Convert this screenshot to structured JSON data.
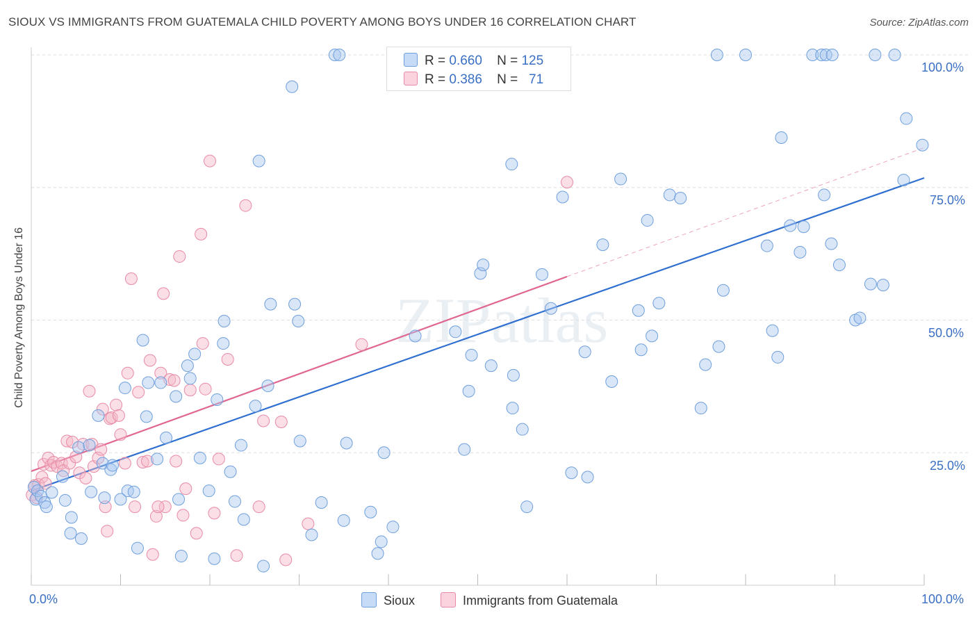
{
  "title": "SIOUX VS IMMIGRANTS FROM GUATEMALA CHILD POVERTY AMONG BOYS UNDER 16 CORRELATION CHART",
  "source": "Source: ZipAtlas.com",
  "watermark": "ZIPatlas",
  "legend_top": {
    "rows": [
      {
        "r_label": "R =",
        "r_value": "0.660",
        "n_label": "N =",
        "n_value": "125",
        "color": "#a9c8f0"
      },
      {
        "r_label": "R =",
        "r_value": "0.386",
        "n_label": "N =",
        "n_value": "71",
        "color": "#f5b8c8"
      }
    ]
  },
  "chart_data": {
    "type": "scatter",
    "title": "SIOUX VS IMMIGRANTS FROM GUATEMALA CHILD POVERTY AMONG BOYS UNDER 16 CORRELATION CHART",
    "xlabel": "",
    "ylabel": "Child Poverty Among Boys Under 16",
    "xlim": [
      0,
      100
    ],
    "ylim": [
      0,
      100
    ],
    "x_tick_labels": [
      "0.0%",
      "100.0%"
    ],
    "y_tick_labels": [
      "25.0%",
      "50.0%",
      "75.0%",
      "100.0%"
    ],
    "y_ticks": [
      25,
      50,
      75,
      100
    ],
    "grid": "horizontal dashed",
    "series": [
      {
        "name": "Sioux",
        "color": "#a9c8f0",
        "stroke": "#6f9fdc",
        "line_color": "#2f6fd0",
        "trend": {
          "x": [
            0,
            100
          ],
          "y": [
            17.8,
            76.8
          ]
        },
        "points": [
          [
            0.3,
            18.5
          ],
          [
            0.5,
            16.2
          ],
          [
            0.7,
            17.8
          ],
          [
            1.1,
            16.8
          ],
          [
            1.5,
            15.6
          ],
          [
            1.7,
            14.8
          ],
          [
            2.3,
            17.5
          ],
          [
            3.5,
            20.5
          ],
          [
            3.8,
            16.0
          ],
          [
            4.5,
            12.8
          ],
          [
            4.4,
            9.8
          ],
          [
            5.6,
            8.8
          ],
          [
            5.3,
            26.0
          ],
          [
            6.5,
            26.4
          ],
          [
            6.7,
            17.6
          ],
          [
            7.5,
            32.0
          ],
          [
            8.0,
            23.0
          ],
          [
            8.2,
            16.5
          ],
          [
            8.9,
            21.8
          ],
          [
            9.1,
            22.6
          ],
          [
            10.0,
            16.2
          ],
          [
            10.5,
            37.2
          ],
          [
            10.8,
            17.8
          ],
          [
            11.5,
            17.6
          ],
          [
            11.9,
            7.0
          ],
          [
            12.5,
            46.2
          ],
          [
            12.9,
            31.8
          ],
          [
            13.1,
            38.2
          ],
          [
            14.1,
            23.8
          ],
          [
            14.5,
            38.2
          ],
          [
            15.1,
            27.8
          ],
          [
            16.2,
            35.6
          ],
          [
            16.5,
            16.2
          ],
          [
            16.8,
            5.5
          ],
          [
            17.5,
            41.4
          ],
          [
            17.8,
            39.0
          ],
          [
            18.3,
            43.6
          ],
          [
            18.9,
            24.0
          ],
          [
            19.9,
            17.8
          ],
          [
            20.5,
            5.0
          ],
          [
            20.8,
            35.0
          ],
          [
            21.5,
            45.6
          ],
          [
            21.6,
            49.8
          ],
          [
            22.3,
            21.4
          ],
          [
            22.8,
            15.8
          ],
          [
            23.5,
            26.4
          ],
          [
            23.8,
            12.4
          ],
          [
            25.1,
            33.8
          ],
          [
            25.5,
            80.0
          ],
          [
            26.0,
            3.6
          ],
          [
            26.5,
            37.6
          ],
          [
            26.8,
            53.0
          ],
          [
            29.2,
            94.0
          ],
          [
            29.5,
            53.0
          ],
          [
            29.9,
            49.8
          ],
          [
            30.1,
            27.2
          ],
          [
            31.4,
            9.5
          ],
          [
            32.5,
            15.6
          ],
          [
            34.0,
            100
          ],
          [
            34.5,
            100
          ],
          [
            35.0,
            12.2
          ],
          [
            35.3,
            26.8
          ],
          [
            38.0,
            13.8
          ],
          [
            38.8,
            6.0
          ],
          [
            39.2,
            8.2
          ],
          [
            39.5,
            25.0
          ],
          [
            40.5,
            11.0
          ],
          [
            43.0,
            47.0
          ],
          [
            47.5,
            47.8
          ],
          [
            48.5,
            25.6
          ],
          [
            49.0,
            36.6
          ],
          [
            49.3,
            43.4
          ],
          [
            50.3,
            58.8
          ],
          [
            50.6,
            60.4
          ],
          [
            51.5,
            41.4
          ],
          [
            53.8,
            79.4
          ],
          [
            53.9,
            33.4
          ],
          [
            54.0,
            39.6
          ],
          [
            55.0,
            29.4
          ],
          [
            55.5,
            14.8
          ],
          [
            57.2,
            58.6
          ],
          [
            58.2,
            52.2
          ],
          [
            59.5,
            73.2
          ],
          [
            60.5,
            21.2
          ],
          [
            62.0,
            44.0
          ],
          [
            62.3,
            20.4
          ],
          [
            64.0,
            64.2
          ],
          [
            65.0,
            38.4
          ],
          [
            66.0,
            76.6
          ],
          [
            68.0,
            51.8
          ],
          [
            68.3,
            44.4
          ],
          [
            69.0,
            68.8
          ],
          [
            69.5,
            47.0
          ],
          [
            70.3,
            53.2
          ],
          [
            71.5,
            73.6
          ],
          [
            72.7,
            73.0
          ],
          [
            75.0,
            33.4
          ],
          [
            75.5,
            41.6
          ],
          [
            76.8,
            100
          ],
          [
            77.0,
            45.0
          ],
          [
            77.5,
            55.6
          ],
          [
            80.0,
            100
          ],
          [
            82.4,
            64.0
          ],
          [
            83.0,
            48.0
          ],
          [
            83.6,
            43.0
          ],
          [
            84.0,
            84.4
          ],
          [
            85.0,
            67.8
          ],
          [
            86.1,
            62.8
          ],
          [
            86.5,
            67.6
          ],
          [
            87.5,
            100
          ],
          [
            88.5,
            100
          ],
          [
            88.8,
            73.6
          ],
          [
            89.0,
            100
          ],
          [
            89.7,
            100
          ],
          [
            89.6,
            64.4
          ],
          [
            90.5,
            60.4
          ],
          [
            92.3,
            50.0
          ],
          [
            92.8,
            50.4
          ],
          [
            94.0,
            56.8
          ],
          [
            94.5,
            100
          ],
          [
            95.4,
            56.6
          ],
          [
            96.7,
            100
          ],
          [
            97.7,
            76.4
          ],
          [
            98.0,
            88.0
          ],
          [
            99.8,
            83.0
          ]
        ]
      },
      {
        "name": "Immigrants from Guatemala",
        "color": "#f5b8c8",
        "stroke": "#e88aa6",
        "line_color": "#e06890",
        "trend": {
          "x": [
            0,
            60
          ],
          "y": [
            21.5,
            58.2
          ]
        },
        "trend_extension": {
          "x": [
            60,
            100
          ],
          "y": [
            58.2,
            82.5
          ]
        },
        "points": [
          [
            0.1,
            17.0
          ],
          [
            0.4,
            18.8
          ],
          [
            0.6,
            16.5
          ],
          [
            0.8,
            19.0
          ],
          [
            1.2,
            20.4
          ],
          [
            1.4,
            22.8
          ],
          [
            1.6,
            19.2
          ],
          [
            1.9,
            24.0
          ],
          [
            2.2,
            22.6
          ],
          [
            2.5,
            23.2
          ],
          [
            2.9,
            22.4
          ],
          [
            3.4,
            23.0
          ],
          [
            3.6,
            21.6
          ],
          [
            4.0,
            27.2
          ],
          [
            4.3,
            23.0
          ],
          [
            4.6,
            27.0
          ],
          [
            5.0,
            24.2
          ],
          [
            5.4,
            21.2
          ],
          [
            5.8,
            26.6
          ],
          [
            6.1,
            20.2
          ],
          [
            6.5,
            36.6
          ],
          [
            6.8,
            26.6
          ],
          [
            7.0,
            22.4
          ],
          [
            7.5,
            24.0
          ],
          [
            7.8,
            25.6
          ],
          [
            8.0,
            33.2
          ],
          [
            8.3,
            14.8
          ],
          [
            8.5,
            10.2
          ],
          [
            8.8,
            31.4
          ],
          [
            9.0,
            31.6
          ],
          [
            9.5,
            34.0
          ],
          [
            9.8,
            32.0
          ],
          [
            10.0,
            28.4
          ],
          [
            10.5,
            23.0
          ],
          [
            10.8,
            40.0
          ],
          [
            11.2,
            57.8
          ],
          [
            11.6,
            14.8
          ],
          [
            12.0,
            36.4
          ],
          [
            12.5,
            23.2
          ],
          [
            13.0,
            23.4
          ],
          [
            13.3,
            42.4
          ],
          [
            13.6,
            5.8
          ],
          [
            14.0,
            13.0
          ],
          [
            14.5,
            40.0
          ],
          [
            14.8,
            55.0
          ],
          [
            15.0,
            14.8
          ],
          [
            15.5,
            38.8
          ],
          [
            16.0,
            38.6
          ],
          [
            16.2,
            23.4
          ],
          [
            16.6,
            62.0
          ],
          [
            17.0,
            13.2
          ],
          [
            17.3,
            18.2
          ],
          [
            17.8,
            36.8
          ],
          [
            18.5,
            9.8
          ],
          [
            19.0,
            66.2
          ],
          [
            19.2,
            45.6
          ],
          [
            19.5,
            37.0
          ],
          [
            20.0,
            80.0
          ],
          [
            20.5,
            13.6
          ],
          [
            21.0,
            23.8
          ],
          [
            22.0,
            42.6
          ],
          [
            23.0,
            5.6
          ],
          [
            24.0,
            71.6
          ],
          [
            25.5,
            14.8
          ],
          [
            26.0,
            31.0
          ],
          [
            28.0,
            30.8
          ],
          [
            28.5,
            4.8
          ],
          [
            31.0,
            11.6
          ],
          [
            37.0,
            45.4
          ],
          [
            60.0,
            76.0
          ],
          [
            14.2,
            14.8
          ]
        ]
      }
    ]
  }
}
